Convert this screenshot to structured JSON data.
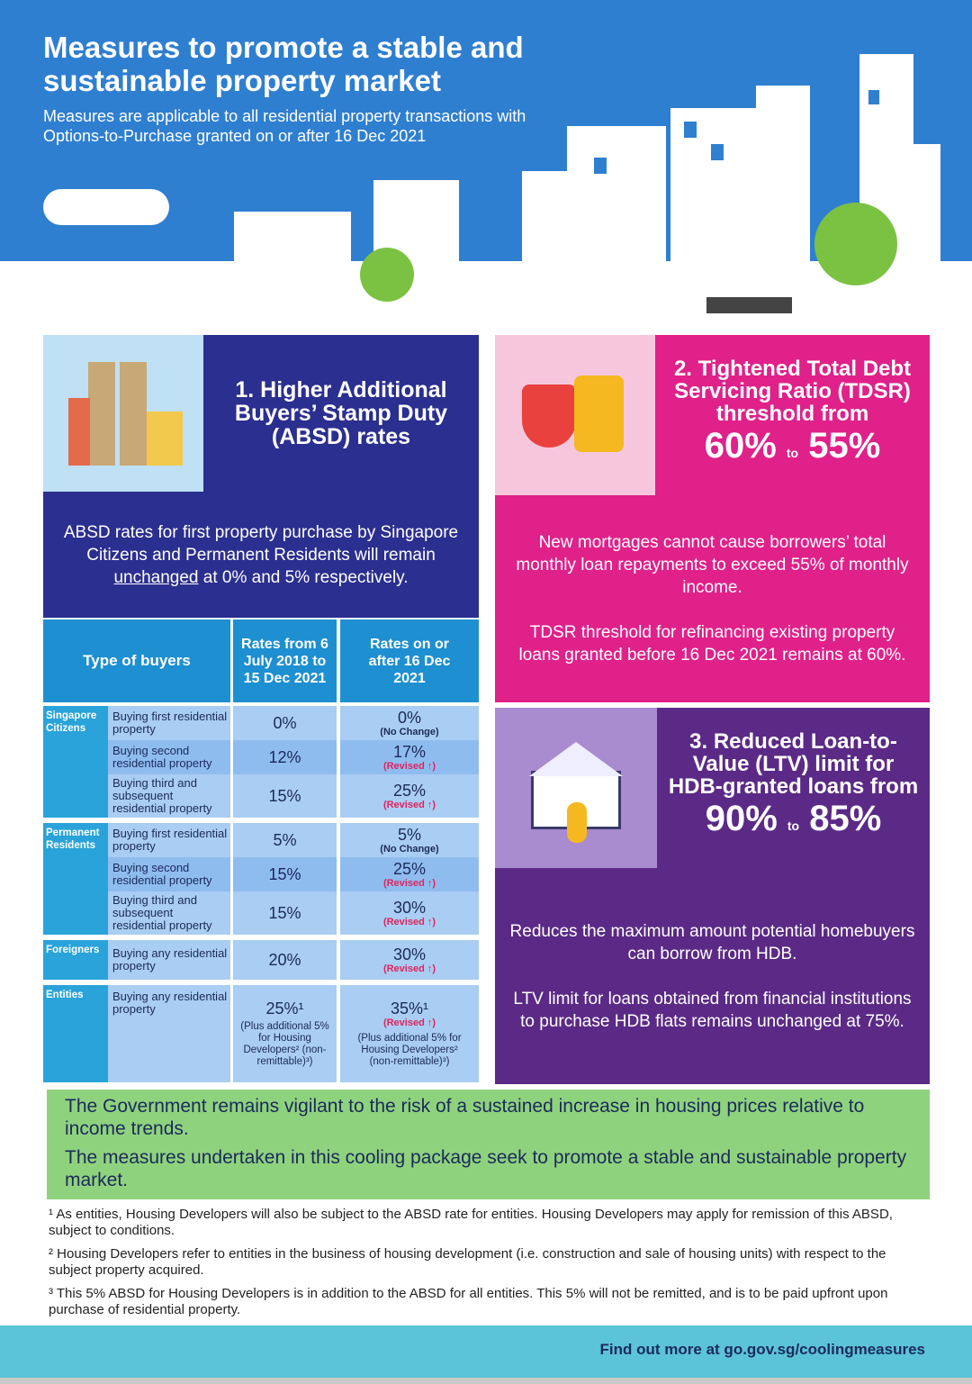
{
  "header": {
    "title": "Measures to promote a stable and sustainable property market",
    "subtitle": "Measures are applicable to all residential property transactions with Options-to-Purchase granted on or after 16 Dec 2021"
  },
  "colors": {
    "hero_blue": "#2f7fd0",
    "absd_navy": "#2b2f8f",
    "tdsr_magenta": "#e0218a",
    "ltv_purple": "#5b2a86",
    "green": "#8fd27e",
    "footer_teal": "#5bc4d6"
  },
  "absd": {
    "title": "1. Higher Additional Buyers’ Stamp Duty (ABSD) rates",
    "intro_before": "ABSD rates for first property purchase by Singapore Citizens and Permanent Residents will remain ",
    "intro_underlined": "unchanged",
    "intro_after": " at 0% and 5% respectively.",
    "table": {
      "headers": [
        "Type of buyers",
        "Rates from 6 July 2018 to 15 Dec 2021",
        "Rates on or after 16 Dec 2021"
      ],
      "groups": [
        {
          "name": "Singapore Citizens",
          "rows": [
            {
              "desc": "Buying first residential property",
              "old": "0%",
              "new": "0%",
              "note": "(No Change)"
            },
            {
              "desc": "Buying second residential property",
              "old": "12%",
              "new": "17%",
              "note": "(Revised ↑)"
            },
            {
              "desc": "Buying third and subsequent residential property",
              "old": "15%",
              "new": "25%",
              "note": "(Revised ↑)"
            }
          ]
        },
        {
          "name": "Permanent Residents",
          "rows": [
            {
              "desc": "Buying first residential property",
              "old": "5%",
              "new": "5%",
              "note": "(No Change)"
            },
            {
              "desc": "Buying second residential property",
              "old": "15%",
              "new": "25%",
              "note": "(Revised ↑)"
            },
            {
              "desc": "Buying third and subsequent residential property",
              "old": "15%",
              "new": "30%",
              "note": "(Revised ↑)"
            }
          ]
        },
        {
          "name": "Foreigners",
          "rows": [
            {
              "desc": "Buying any residential property",
              "old": "20%",
              "new": "30%",
              "note": "(Revised ↑)"
            }
          ]
        },
        {
          "name": "Entities",
          "rows": [
            {
              "desc": "Buying any residential property",
              "old": "25%¹",
              "new": "35%¹",
              "note": "(Revised ↑)",
              "extra": "(Plus additional 5% for Housing Developers² (non-remittable)³)"
            }
          ]
        }
      ]
    }
  },
  "tdsr": {
    "title": "2. Tightened Total Debt Servicing Ratio (TDSR) threshold from",
    "from": "60%",
    "to_word": "to",
    "to": "55%",
    "text1": "New mortgages cannot cause borrowers’ total monthly loan repayments to exceed 55% of monthly income.",
    "text2": "TDSR threshold for refinancing existing property loans granted before 16 Dec 2021 remains at 60%."
  },
  "ltv": {
    "title": "3. Reduced Loan-to-Value (LTV) limit for HDB-granted loans from",
    "from": "90%",
    "to_word": "to",
    "to": "85%",
    "text1": "Reduces the maximum amount potential homebuyers can borrow from HDB.",
    "text2": "LTV limit for loans obtained from financial institutions to purchase HDB flats remains unchanged at 75%."
  },
  "green": {
    "p1": "The Government remains vigilant to the risk of a sustained increase in housing prices relative to income trends.",
    "p2": "The measures undertaken in this cooling package seek to promote a stable and sustainable property market."
  },
  "footnotes": [
    "¹ As entities, Housing Developers will also be subject to the ABSD rate for entities. Housing Developers may apply for remission of this ABSD, subject to conditions.",
    "² Housing Developers refer to entities in the business of housing development (i.e. construction and sale of housing units) with respect to the subject property acquired.",
    "³ This 5% ABSD for Housing Developers is in addition to the ABSD for all entities. This 5% will not be remitted, and is to be paid upfront upon purchase of residential property."
  ],
  "footer": {
    "link": "Find out more at go.gov.sg/coolingmeasures"
  }
}
